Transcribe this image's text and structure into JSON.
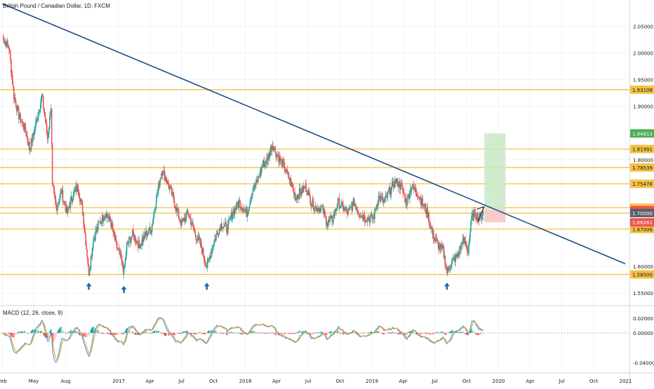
{
  "header": {
    "symbol_title": "British Pound / Canadian Dollar, 1D, FXCM",
    "macd_title": "MACD (12, 26, close, 9)"
  },
  "colors": {
    "trendline": "#1d4e86",
    "support_resistance": "#f5c242",
    "bull_candle": "#26a69a",
    "bear_candle": "#ef5350",
    "target_zone": "#c8e9c4",
    "stop_zone": "#f7c6c8",
    "macd_line": "#2196f3",
    "signal_line": "#ff9800",
    "arrow": "#1e66b5"
  },
  "chart_data": [
    {
      "type": "candlestick",
      "title": "British Pound / Canadian Dollar, 1D, FXCM",
      "ylim": [
        1.528,
        2.099
      ],
      "y_ticks": [
        "2.05000",
        "2.00000",
        "1.95000",
        "1.90000",
        "1.80000",
        "1.60000",
        "1.55000"
      ],
      "x_ticks": [
        "Feb",
        "May",
        "Aug",
        "2017",
        "Apr",
        "Jul",
        "Oct",
        "2018",
        "Apr",
        "Jul",
        "Oct",
        "2019",
        "Apr",
        "Jul",
        "Oct",
        "2020",
        "Apr",
        "Jul",
        "Oct",
        "2021"
      ],
      "x_tick_dates": [
        "2016-02-01",
        "2016-05-01",
        "2016-08-01",
        "2017-01-01",
        "2017-04-01",
        "2017-07-01",
        "2017-10-01",
        "2018-01-01",
        "2018-04-01",
        "2018-07-01",
        "2018-10-01",
        "2019-01-01",
        "2019-04-01",
        "2019-07-01",
        "2019-10-01",
        "2020-01-01",
        "2020-04-01",
        "2020-07-01",
        "2020-10-01",
        "2021-01-01"
      ],
      "price_path": [
        [
          "2016-02-01",
          2.03
        ],
        [
          "2016-02-10",
          2.02
        ],
        [
          "2016-02-20",
          2.01
        ],
        [
          "2016-03-05",
          1.92
        ],
        [
          "2016-03-20",
          1.88
        ],
        [
          "2016-04-05",
          1.86
        ],
        [
          "2016-04-20",
          1.82
        ],
        [
          "2016-05-01",
          1.85
        ],
        [
          "2016-05-15",
          1.89
        ],
        [
          "2016-05-25",
          1.92
        ],
        [
          "2016-06-10",
          1.84
        ],
        [
          "2016-06-20",
          1.9
        ],
        [
          "2016-06-24",
          1.75
        ],
        [
          "2016-07-05",
          1.71
        ],
        [
          "2016-07-20",
          1.74
        ],
        [
          "2016-08-05",
          1.7
        ],
        [
          "2016-08-20",
          1.73
        ],
        [
          "2016-09-05",
          1.75
        ],
        [
          "2016-09-20",
          1.7
        ],
        [
          "2016-10-07",
          1.59
        ],
        [
          "2016-10-20",
          1.65
        ],
        [
          "2016-11-05",
          1.68
        ],
        [
          "2016-11-25",
          1.7
        ],
        [
          "2016-12-10",
          1.68
        ],
        [
          "2016-12-25",
          1.64
        ],
        [
          "2017-01-05",
          1.62
        ],
        [
          "2017-01-16",
          1.59
        ],
        [
          "2017-01-25",
          1.64
        ],
        [
          "2017-02-10",
          1.66
        ],
        [
          "2017-03-01",
          1.64
        ],
        [
          "2017-03-20",
          1.66
        ],
        [
          "2017-04-05",
          1.67
        ],
        [
          "2017-04-20",
          1.73
        ],
        [
          "2017-05-05",
          1.78
        ],
        [
          "2017-05-20",
          1.76
        ],
        [
          "2017-06-01",
          1.74
        ],
        [
          "2017-06-15",
          1.71
        ],
        [
          "2017-07-01",
          1.68
        ],
        [
          "2017-07-20",
          1.7
        ],
        [
          "2017-08-10",
          1.66
        ],
        [
          "2017-08-25",
          1.64
        ],
        [
          "2017-09-12",
          1.6
        ],
        [
          "2017-09-25",
          1.63
        ],
        [
          "2017-10-10",
          1.66
        ],
        [
          "2017-10-25",
          1.68
        ],
        [
          "2017-11-10",
          1.67
        ],
        [
          "2017-11-25",
          1.7
        ],
        [
          "2017-12-15",
          1.72
        ],
        [
          "2018-01-05",
          1.7
        ],
        [
          "2018-01-20",
          1.74
        ],
        [
          "2018-02-05",
          1.76
        ],
        [
          "2018-02-20",
          1.79
        ],
        [
          "2018-03-05",
          1.8
        ],
        [
          "2018-03-20",
          1.83
        ],
        [
          "2018-04-01",
          1.81
        ],
        [
          "2018-04-20",
          1.79
        ],
        [
          "2018-05-10",
          1.76
        ],
        [
          "2018-05-25",
          1.73
        ],
        [
          "2018-06-10",
          1.74
        ],
        [
          "2018-06-25",
          1.75
        ],
        [
          "2018-07-10",
          1.72
        ],
        [
          "2018-07-25",
          1.71
        ],
        [
          "2018-08-10",
          1.71
        ],
        [
          "2018-08-25",
          1.68
        ],
        [
          "2018-09-10",
          1.69
        ],
        [
          "2018-09-25",
          1.72
        ],
        [
          "2018-10-10",
          1.71
        ],
        [
          "2018-10-25",
          1.7
        ],
        [
          "2018-11-10",
          1.72
        ],
        [
          "2018-11-25",
          1.7
        ],
        [
          "2018-12-15",
          1.69
        ],
        [
          "2019-01-05",
          1.69
        ],
        [
          "2019-01-20",
          1.73
        ],
        [
          "2019-02-05",
          1.72
        ],
        [
          "2019-02-20",
          1.74
        ],
        [
          "2019-03-10",
          1.76
        ],
        [
          "2019-03-25",
          1.75
        ],
        [
          "2019-04-10",
          1.72
        ],
        [
          "2019-04-25",
          1.75
        ],
        [
          "2019-05-10",
          1.74
        ],
        [
          "2019-05-25",
          1.72
        ],
        [
          "2019-06-10",
          1.7
        ],
        [
          "2019-06-25",
          1.66
        ],
        [
          "2019-07-10",
          1.64
        ],
        [
          "2019-07-25",
          1.63
        ],
        [
          "2019-08-05",
          1.59
        ],
        [
          "2019-08-20",
          1.61
        ],
        [
          "2019-09-05",
          1.62
        ],
        [
          "2019-09-20",
          1.65
        ],
        [
          "2019-10-05",
          1.63
        ],
        [
          "2019-10-15",
          1.69
        ],
        [
          "2019-10-25",
          1.7
        ],
        [
          "2019-11-05",
          1.69
        ],
        [
          "2019-11-18",
          1.702
        ]
      ],
      "horizontal_levels": [
        {
          "value": 1.93108,
          "label": "1.93108"
        },
        {
          "value": 1.81991,
          "label": "1.81991"
        },
        {
          "value": 1.78539,
          "label": "1.78539"
        },
        {
          "value": 1.75478,
          "label": "1.75478"
        },
        {
          "value": 1.71,
          "label": "1.71000"
        },
        {
          "value": 1.7,
          "label": "1.70000"
        },
        {
          "value": 1.67006,
          "label": "1.67006"
        },
        {
          "value": 1.585,
          "label": "1.58500"
        }
      ],
      "trendline": [
        [
          "2016-02-01",
          2.092
        ],
        [
          "2020-12-31",
          1.605
        ]
      ],
      "position": {
        "entry": 1.70537,
        "entry_label": "1.70537",
        "target": 1.84913,
        "target_label": "1.84913",
        "stop": 1.68261,
        "stop_label": "1.68261",
        "start": "2019-11-21",
        "end": "2020-01-21"
      },
      "price_badges": [
        {
          "value": 1.84913,
          "label": "1.84913",
          "color": "#4caf50"
        },
        {
          "value": 1.70537,
          "label": "1.70537",
          "color": "#ef5350"
        },
        {
          "value": 1.7,
          "label": "1.70000",
          "color": "#5d606b"
        },
        {
          "value": 1.68261,
          "label": "1.68261",
          "color": "#ef5350"
        }
      ],
      "arrows": [
        {
          "date": "2016-10-07",
          "value": 1.58
        },
        {
          "date": "2017-01-16",
          "value": 1.574
        },
        {
          "date": "2017-09-12",
          "value": 1.58
        },
        {
          "date": "2019-08-05",
          "value": 1.58
        }
      ],
      "wedge_lines": [
        [
          [
            "2019-11-01",
            1.683
          ],
          [
            "2019-11-20",
            1.712
          ]
        ],
        [
          [
            "2019-10-30",
            1.707
          ],
          [
            "2019-11-20",
            1.712
          ]
        ]
      ]
    },
    {
      "type": "line",
      "title": "MACD (12, 26, close, 9)",
      "ylim": [
        -0.052,
        0.036
      ],
      "y_ticks": [
        "0.02000",
        "0.00000",
        "-0.04000"
      ],
      "series": [
        {
          "role": "macd"
        },
        {
          "role": "signal"
        },
        {
          "role": "histogram"
        }
      ]
    }
  ]
}
